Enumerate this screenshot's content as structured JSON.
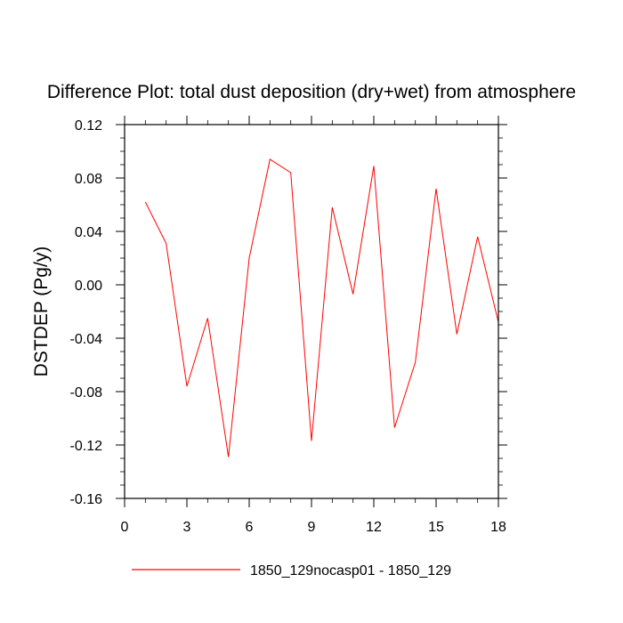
{
  "chart_data": {
    "type": "line",
    "title": "Difference Plot: total dust deposition (dry+wet) from atmosphere",
    "xlabel": "",
    "ylabel": "DSTDEP  (Pg/y)",
    "xlim": [
      0,
      18
    ],
    "ylim": [
      -0.16,
      0.12
    ],
    "x_ticks": [
      0,
      3,
      6,
      9,
      12,
      15,
      18
    ],
    "x_tick_labels": [
      "0",
      "3",
      "6",
      "9",
      "12",
      "15",
      "18"
    ],
    "y_ticks": [
      -0.16,
      -0.12,
      -0.08,
      -0.04,
      0.0,
      0.04,
      0.08,
      0.12
    ],
    "y_tick_labels": [
      "-0.16",
      "-0.12",
      "-0.08",
      "-0.04",
      "0.00",
      "0.04",
      "0.08",
      "0.12"
    ],
    "grid": false,
    "legend_position": "bottom",
    "series": [
      {
        "name": "1850_129nocasp01 - 1850_129",
        "color": "#ff0000",
        "x": [
          1,
          2,
          3,
          4,
          5,
          6,
          7,
          8,
          9,
          10,
          11,
          12,
          13,
          14,
          15,
          16,
          17,
          18
        ],
        "y": [
          0.062,
          0.031,
          -0.076,
          -0.025,
          -0.129,
          0.02,
          0.094,
          0.084,
          -0.117,
          0.058,
          -0.007,
          0.089,
          -0.107,
          -0.058,
          0.072,
          -0.037,
          0.036,
          -0.028
        ]
      }
    ]
  }
}
